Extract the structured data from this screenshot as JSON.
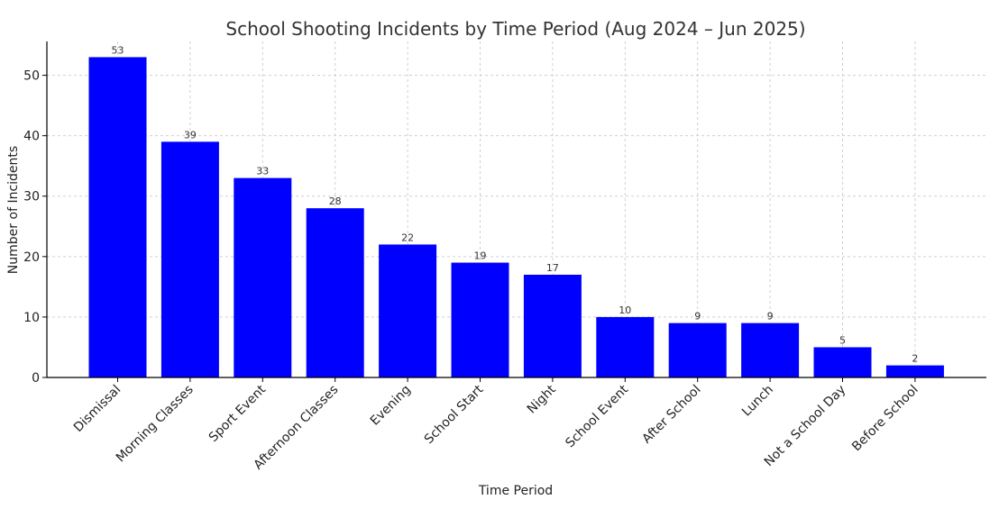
{
  "chart_data": {
    "type": "bar",
    "title": "School Shooting Incidents by Time Period (Aug 2024 – Jun 2025)",
    "xlabel": "Time Period",
    "ylabel": "Number of Incidents",
    "categories": [
      "Dismissal",
      "Morning Classes",
      "Sport Event",
      "Afternoon Classes",
      "Evening",
      "School Start",
      "Night",
      "School Event",
      "After School",
      "Lunch",
      "Not a School Day",
      "Before School"
    ],
    "values": [
      53,
      39,
      33,
      28,
      22,
      19,
      17,
      10,
      9,
      9,
      5,
      2
    ],
    "ylim": [
      0,
      55.6
    ],
    "yticks": [
      0,
      10,
      20,
      30,
      40,
      50
    ],
    "bar_color": "#0000ff",
    "grid": true,
    "data_labels": true
  }
}
